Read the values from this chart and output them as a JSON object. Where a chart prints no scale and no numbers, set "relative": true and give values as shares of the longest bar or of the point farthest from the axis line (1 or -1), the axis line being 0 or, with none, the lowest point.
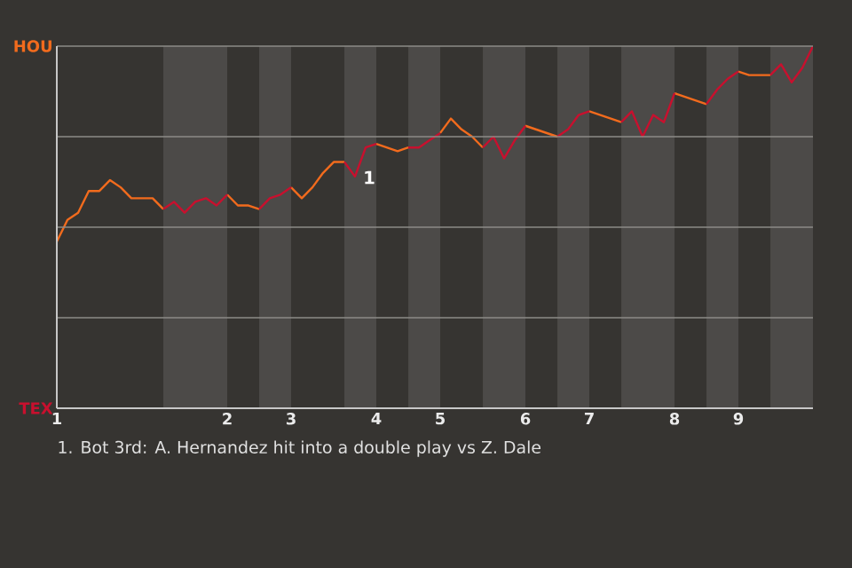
{
  "chart_data": {
    "type": "line",
    "relative": true,
    "categories": [
      "1",
      null,
      null,
      null,
      null,
      null,
      null,
      null,
      null,
      null,
      null,
      null,
      null,
      null,
      null,
      null,
      "2",
      null,
      null,
      null,
      null,
      null,
      "3",
      null,
      null,
      null,
      null,
      null,
      null,
      null,
      "4",
      null,
      null,
      null,
      null,
      null,
      "5",
      null,
      null,
      null,
      null,
      null,
      null,
      null,
      "6",
      null,
      null,
      null,
      null,
      null,
      "7",
      null,
      null,
      null,
      null,
      null,
      null,
      null,
      "8",
      null,
      null,
      null,
      null,
      null,
      "9",
      null,
      null,
      null,
      null,
      null,
      null,
      null
    ],
    "series": [
      {
        "color": "#f26b1d",
        "values": [
          0.46,
          0.52,
          0.54,
          0.6,
          0.6,
          0.63,
          0.61,
          0.58,
          0.58,
          0.58,
          0.55,
          null,
          null,
          null,
          null,
          null,
          0.59,
          0.56,
          0.56,
          0.55,
          null,
          null,
          0.61,
          0.58,
          0.61,
          0.65,
          0.68,
          0.68,
          null,
          null,
          0.73,
          0.72,
          0.71,
          0.72,
          null,
          null,
          0.76,
          0.8,
          0.77,
          0.75,
          0.72,
          null,
          null,
          null,
          0.78,
          0.77,
          0.76,
          0.75,
          null,
          null,
          0.82,
          0.81,
          0.8,
          0.79,
          null,
          null,
          null,
          null,
          0.87,
          0.86,
          0.85,
          0.84,
          null,
          null,
          0.93,
          0.92,
          0.92,
          0.92,
          null,
          null,
          null,
          null
        ]
      },
      {
        "color": "#c8102e",
        "values": [
          null,
          null,
          null,
          null,
          null,
          null,
          null,
          null,
          null,
          null,
          0.55,
          0.57,
          0.54,
          0.57,
          0.58,
          0.56,
          0.59,
          null,
          null,
          0.55,
          0.58,
          0.59,
          0.61,
          null,
          null,
          null,
          null,
          0.68,
          0.64,
          0.72,
          0.73,
          null,
          null,
          0.72,
          0.72,
          0.74,
          0.76,
          null,
          null,
          null,
          0.72,
          0.75,
          0.69,
          0.74,
          0.78,
          null,
          null,
          0.75,
          0.77,
          0.81,
          0.82,
          null,
          null,
          0.79,
          0.82,
          0.75,
          0.81,
          0.79,
          0.87,
          null,
          null,
          0.84,
          0.88,
          0.91,
          0.93,
          null,
          null,
          0.92,
          0.95,
          0.9,
          0.94,
          1.0
        ]
      }
    ],
    "grid": "y",
    "annotations": [
      "HOU",
      "TEX",
      "1",
      "1. Bot 3rd: A. Hernandez hit into a double play vs Z. Dale"
    ]
  }
}
